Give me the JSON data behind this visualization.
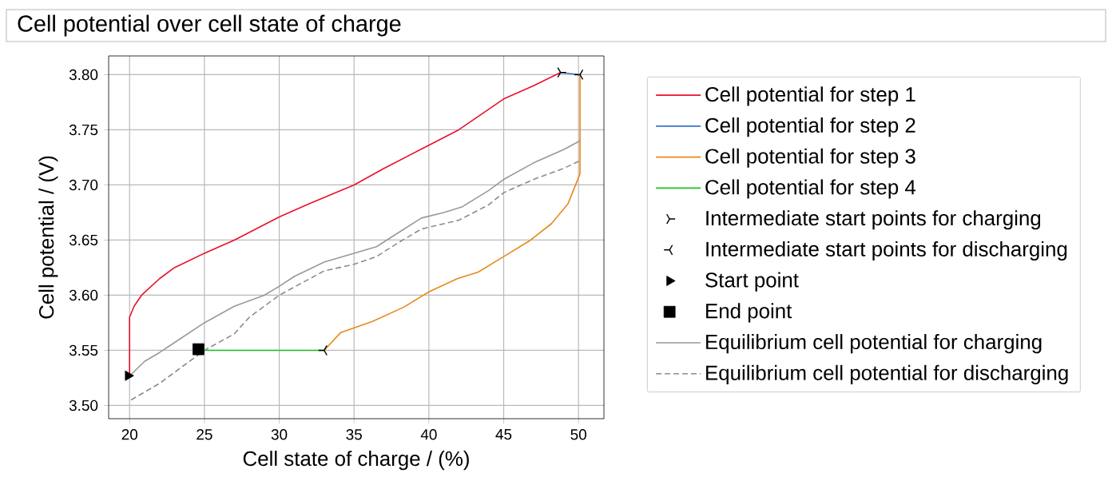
{
  "chart_data": {
    "type": "line",
    "title": "Cell potential over cell state of charge",
    "xlabel": "Cell state of charge / (%)",
    "ylabel": "Cell potential / (V)",
    "xlim": [
      18.6,
      51.7
    ],
    "ylim": [
      3.488,
      3.817
    ],
    "xticks": [
      20,
      25,
      30,
      35,
      40,
      45,
      50
    ],
    "yticks": [
      {
        "value": 3.5,
        "label": "3.50"
      },
      {
        "value": 3.55,
        "label": "3.55"
      },
      {
        "value": 3.6,
        "label": "3.60"
      },
      {
        "value": 3.65,
        "label": "3.65"
      },
      {
        "value": 3.7,
        "label": "3.70"
      },
      {
        "value": 3.75,
        "label": "3.75"
      },
      {
        "value": 3.8,
        "label": "3.80"
      }
    ],
    "grid": true,
    "legend": "right",
    "series": [
      {
        "name": "Cell potential for step 1",
        "color": "#e8112d",
        "x": [
          20,
          20,
          20.3,
          20.8,
          22,
          23,
          25,
          27,
          30,
          32,
          35,
          37,
          40,
          42,
          45,
          47,
          48.8
        ],
        "values": [
          3.527,
          3.58,
          3.59,
          3.6,
          3.615,
          3.625,
          3.638,
          3.65,
          3.671,
          3.683,
          3.7,
          3.715,
          3.736,
          3.75,
          3.778,
          3.79,
          3.802
        ]
      },
      {
        "name": "Cell potential for step 2",
        "color": "#3a75c4",
        "x": [
          48.8,
          50.1
        ],
        "values": [
          3.802,
          3.8
        ]
      },
      {
        "name": "Cell potential for step 3",
        "color": "#e8891a",
        "x": [
          50.1,
          50.1,
          49.3,
          48.2,
          46.8,
          45,
          43.3,
          41.9,
          40,
          38.3,
          36.2,
          34.1,
          33
        ],
        "values": [
          3.8,
          3.71,
          3.683,
          3.665,
          3.65,
          3.635,
          3.621,
          3.615,
          3.603,
          3.589,
          3.576,
          3.566,
          3.55
        ]
      },
      {
        "name": "Cell potential for step 4",
        "color": "#22c022",
        "x": [
          33,
          24.6
        ],
        "values": [
          3.55,
          3.55
        ]
      },
      {
        "name": "Intermediate start points for charging",
        "type": "scatter",
        "marker": "cross",
        "color": "#000000",
        "x": [
          48.8
        ],
        "values": [
          3.802
        ]
      },
      {
        "name": "Intermediate start points for discharging",
        "type": "scatter",
        "marker": "cross",
        "color": "#000000",
        "x": [
          50.1,
          33
        ],
        "values": [
          3.8,
          3.55
        ]
      },
      {
        "name": "Start point",
        "type": "scatter",
        "marker": "triangle",
        "color": "#000000",
        "x": [
          19.9
        ],
        "values": [
          3.527
        ]
      },
      {
        "name": "End point",
        "type": "scatter",
        "marker": "square",
        "color": "#000000",
        "x": [
          24.6
        ],
        "values": [
          3.551
        ]
      },
      {
        "name": "Equilibrium cell potential for charging",
        "color": "#999999",
        "line_style": "solid",
        "x": [
          20.1,
          21,
          22,
          23,
          25,
          27,
          29,
          30,
          31,
          33,
          35,
          36.5,
          38,
          39.5,
          41,
          42.2,
          44,
          45,
          47,
          49,
          50.1
        ],
        "values": [
          3.528,
          3.54,
          3.548,
          3.557,
          3.575,
          3.59,
          3.6,
          3.608,
          3.617,
          3.63,
          3.638,
          3.644,
          3.657,
          3.67,
          3.675,
          3.68,
          3.695,
          3.705,
          3.72,
          3.732,
          3.74
        ]
      },
      {
        "name": "Equilibrium cell potential for discharging",
        "color": "#8c8c8c",
        "line_style": "dashed",
        "x": [
          20.1,
          22,
          24,
          25,
          27,
          28,
          30,
          33,
          35,
          36.5,
          38,
          39.5,
          42,
          44,
          45,
          47,
          49,
          50.1
        ],
        "values": [
          3.505,
          3.52,
          3.54,
          3.55,
          3.565,
          3.58,
          3.6,
          3.622,
          3.628,
          3.635,
          3.648,
          3.66,
          3.668,
          3.682,
          3.693,
          3.705,
          3.715,
          3.722
        ]
      }
    ]
  }
}
